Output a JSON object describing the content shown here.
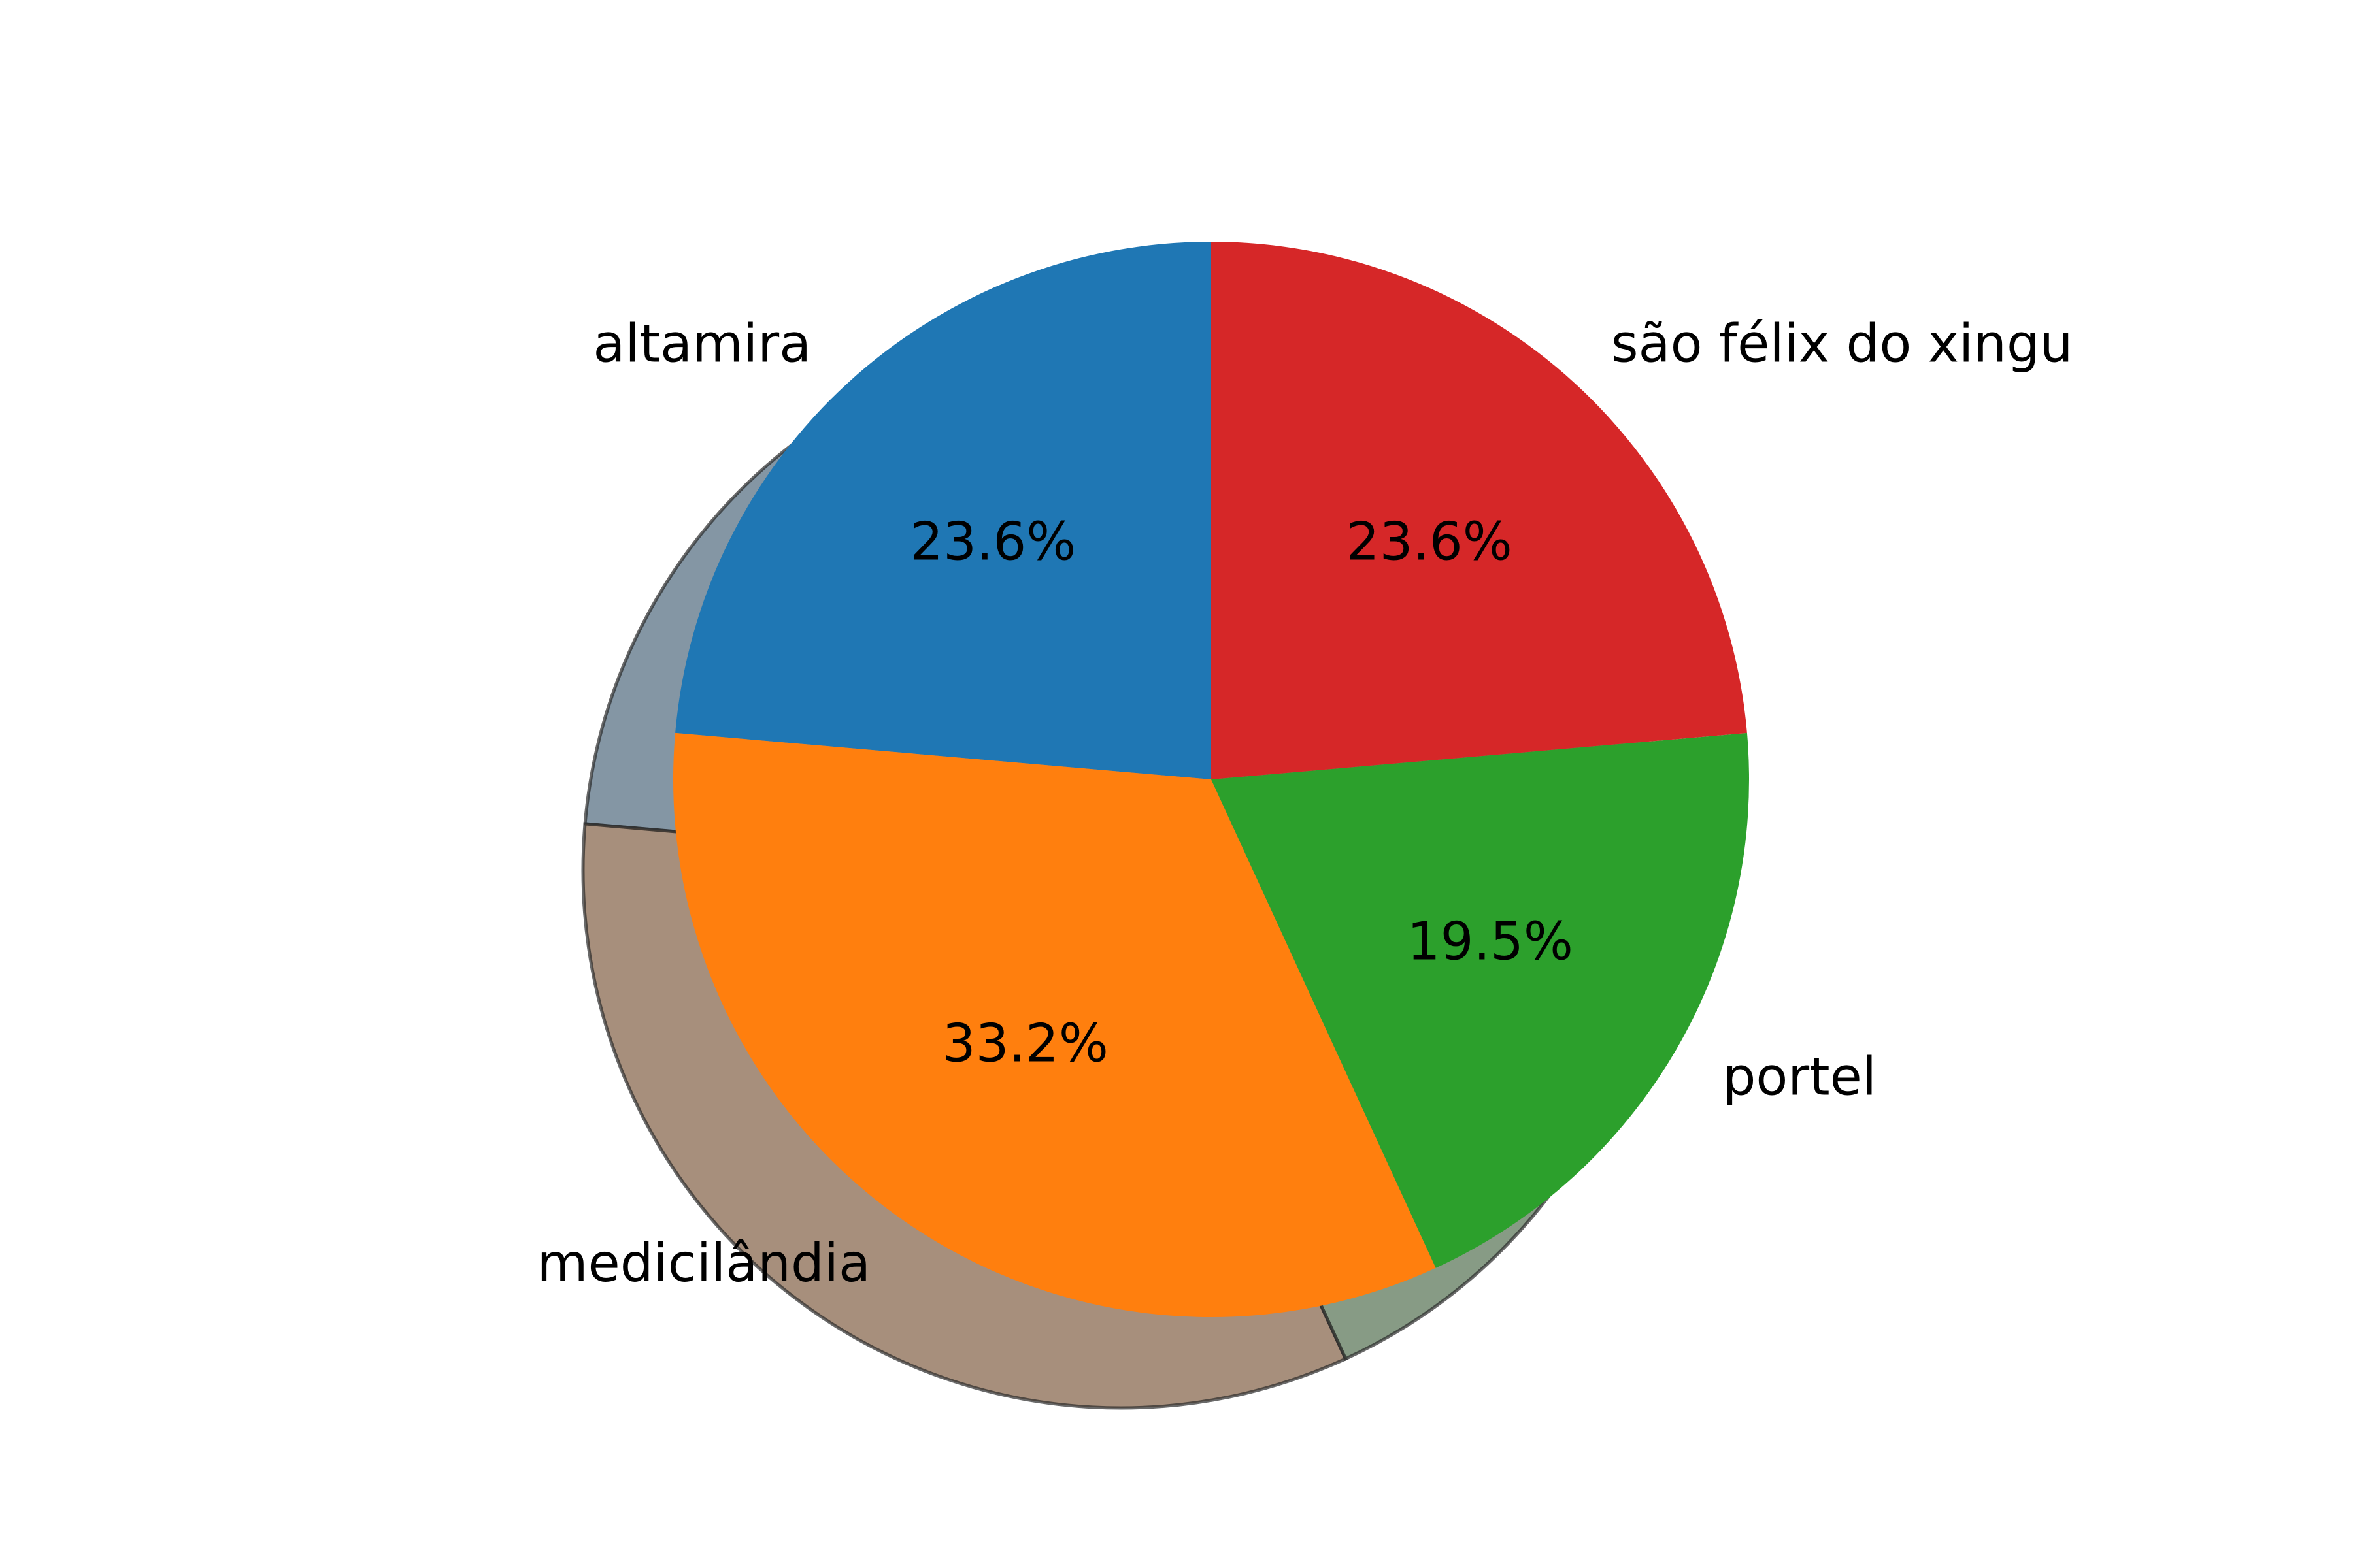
{
  "chart_data": {
    "type": "pie",
    "categories": [
      "altamira",
      "medicilândia",
      "portel",
      "são félix do xingu"
    ],
    "values": [
      23.6,
      33.2,
      19.5,
      23.6
    ],
    "percent_labels": [
      "23.6%",
      "33.2%",
      "19.5%",
      "23.6%"
    ],
    "colors": [
      "#1f77b4",
      "#ff7f0e",
      "#2ca02c",
      "#d62728"
    ],
    "start_angle_deg": 90,
    "direction": "counterclockwise",
    "shadow": true,
    "legend": "none"
  }
}
